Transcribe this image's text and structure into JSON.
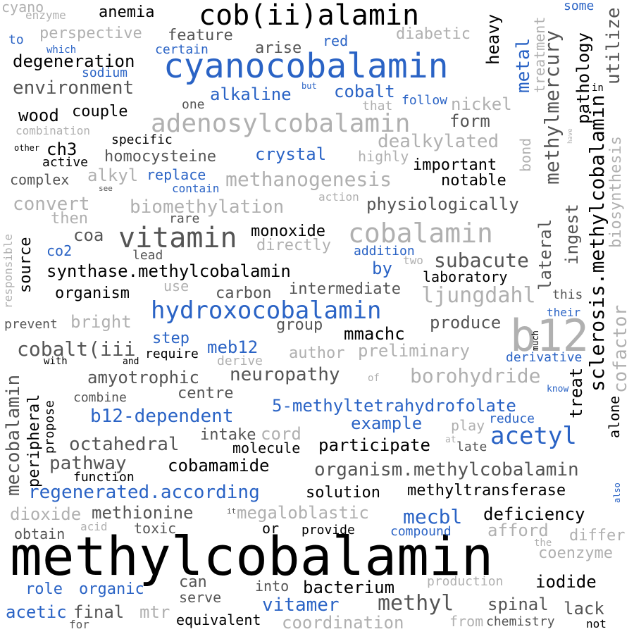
{
  "title": "",
  "words": {
    "methylcobalamin": "methylcobalamin",
    "cyanocobalamin": "cyanocobalamin",
    "cobiialamin": "cob(ii)alamin",
    "adenosylcobalamin": "adenosylcobalamin",
    "cobalamin": "cobalamin",
    "vitamin": "vitamin",
    "hydroxocobalamin": "hydroxocobalamin",
    "b12": "b12",
    "methanogenesis": "methanogenesis",
    "biomethylation": "biomethylation",
    "synthase": "synthase.methylcobalamin",
    "organism2": "organism.methylcobalamin",
    "regenerated": "regenerated.according",
    "five_methyl": "5-methyltetrahydrofolate",
    "b12dep": "b12-dependent",
    "neuropathy": "neuropathy",
    "octahedral": "octahedral",
    "pathway": "pathway",
    "cobamamide": "cobamamide",
    "environment": "environment",
    "degeneration": "degeneration",
    "anemia": "anemia",
    "feature": "feature",
    "perspective": "perspective",
    "diabetic": "diabetic",
    "arise": "arise",
    "red": "red",
    "certain": "certain",
    "sodium": "sodium",
    "alkaline": "alkaline",
    "cobalt": "cobalt",
    "follow": "follow",
    "nickel": "nickel",
    "form": "form",
    "dealkylated": "dealkylated",
    "important": "important",
    "notable": "notable",
    "physiologically": "physiologically",
    "wood": "wood",
    "couple": "couple",
    "one": "one",
    "that": "that",
    "combination": "combination",
    "specific": "specific",
    "ch3": "ch3",
    "homocysteine": "homocysteine",
    "crystal": "crystal",
    "highly": "highly",
    "active": "active",
    "alkyl": "alkyl",
    "replace": "replace",
    "contain": "contain",
    "complex": "complex",
    "convert": "convert",
    "then": "then",
    "rare": "rare",
    "coa": "coa",
    "monoxide": "monoxide",
    "directly": "directly",
    "co2": "co2",
    "lead": "lead",
    "addition": "addition",
    "two": "two",
    "subacute": "subacute",
    "laboratory": "laboratory",
    "source": "source",
    "by": "by",
    "organism": "organism",
    "use": "use",
    "carbon": "carbon",
    "intermediate": "intermediate",
    "ljungdahl": "ljungdahl",
    "prevent": "prevent",
    "bright": "bright",
    "group": "group",
    "produce": "produce",
    "mmachc": "mmachc",
    "step": "step",
    "cobaltiii": "cobalt(iii",
    "require": "require",
    "meb12": "meb12",
    "author": "author",
    "preliminary": "preliminary",
    "with": "with",
    "and": "and",
    "derive": "derive",
    "derivative": "derivative",
    "amyotrophic": "amyotrophic",
    "of": "of",
    "borohydride": "borohydride",
    "centre": "centre",
    "combine": "combine",
    "know": "know",
    "example": "example",
    "reduce": "reduce",
    "play": "play",
    "acetyl": "acetyl",
    "intake": "intake",
    "cord": "cord",
    "molecule": "molecule",
    "participate": "participate",
    "at": "at",
    "late": "late",
    "function": "function",
    "solution": "solution",
    "methyltransferase": "methyltransferase",
    "dioxide": "dioxide",
    "methionine": "methionine",
    "it": "it",
    "megaloblastic": "megaloblastic",
    "mecbl": "mecbl",
    "deficiency": "deficiency",
    "obtain": "obtain",
    "acid": "acid",
    "toxic": "toxic",
    "or": "or",
    "provide": "provide",
    "compound": "compound",
    "afford": "afford",
    "differ": "differ",
    "the": "the",
    "coenzyme": "coenzyme",
    "role": "role",
    "organic": "organic",
    "can": "can",
    "into": "into",
    "bacterium": "bacterium",
    "production": "production",
    "iodide": "iodide",
    "serve": "serve",
    "acetic": "acetic",
    "final": "final",
    "mtr": "mtr",
    "vitamer": "vitamer",
    "methyl": "methyl",
    "spinal": "spinal",
    "lack": "lack",
    "for": "for",
    "equivalent": "equivalent",
    "coordination": "coordination",
    "from": "from",
    "chemistry": "chemistry",
    "not": "not",
    "cyano": "cyano",
    "enzyme": "enzyme",
    "to": "to",
    "which": "which",
    "but": "but",
    "other": "other",
    "see": "see",
    "action": "action",
    "some": "some",
    "in": "in",
    "have": "have",
    "this": "this",
    "their": "their",
    "much": "much",
    "also": "also",
    "heavy": "heavy",
    "metal": "metal",
    "treatment": "treatment",
    "mercury": "mercury",
    "methylmercury": "methylmercury",
    "pathology": "pathology",
    "utilize": "utilize",
    "bond": "bond",
    "biosynthesis": "biosynthesis",
    "sclerosis": "sclerosis.methylcobalamin",
    "cofactor": "cofactor",
    "lateral": "lateral",
    "ingest": "ingest",
    "treat": "treat",
    "alone": "alone",
    "mecobalamin": "mecobalamin",
    "peripheral": "peripheral",
    "propose": "propose",
    "responsible": "responsible"
  }
}
